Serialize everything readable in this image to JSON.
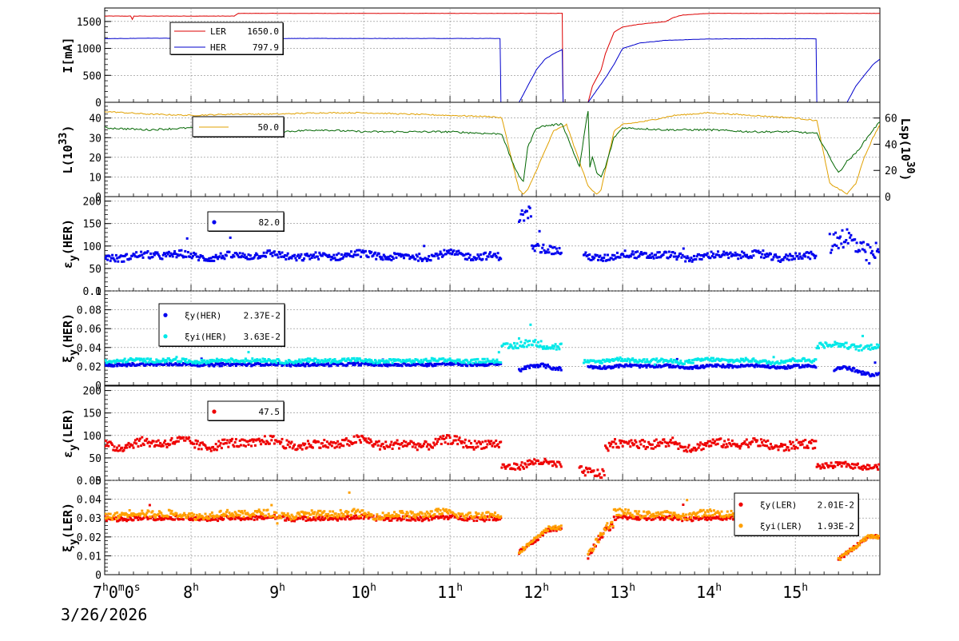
{
  "date_label": "3/26/2026",
  "x_axis": {
    "start_label": "7",
    "start_sup_h": "h",
    "start_mid": "0",
    "start_sup_m": "m",
    "start_mid2": "0",
    "start_sup_s": "s",
    "ticks": [
      {
        "hour": 8,
        "label": "8"
      },
      {
        "hour": 9,
        "label": "9"
      },
      {
        "hour": 10,
        "label": "10"
      },
      {
        "hour": 11,
        "label": "11"
      },
      {
        "hour": 12,
        "label": "12"
      },
      {
        "hour": 13,
        "label": "13"
      },
      {
        "hour": 14,
        "label": "14"
      },
      {
        "hour": 15,
        "label": "15"
      }
    ],
    "tick_suffix": "h",
    "range": [
      7.0,
      15.98
    ]
  },
  "chart_data": [
    {
      "type": "line",
      "ylabel": "I[mA]",
      "ylim": [
        0,
        1750
      ],
      "yticks": [
        "0",
        "500",
        "1000",
        "1500"
      ],
      "ytick_values": [
        0,
        500,
        1000,
        1500
      ],
      "grid": true,
      "legend": [
        {
          "name": "LER",
          "value": "1650.0",
          "color": "#dd0000"
        },
        {
          "name": "HER",
          "value": "797.9",
          "color": "#0000cc"
        }
      ],
      "series": [
        {
          "name": "LER",
          "color": "#dd0000",
          "x": [
            7.0,
            7.3,
            7.32,
            7.34,
            7.5,
            8.5,
            8.55,
            10.0,
            11.6,
            12.3,
            12.31,
            12.32,
            12.6,
            12.65,
            12.75,
            12.8,
            12.85,
            12.9,
            13.0,
            13.2,
            13.5,
            13.6,
            13.7,
            14.0,
            14.5,
            15.0,
            15.5,
            15.98
          ],
          "y": [
            1600,
            1600,
            1540,
            1600,
            1600,
            1600,
            1650,
            1650,
            1650,
            1650,
            0,
            0,
            0,
            300,
            600,
            900,
            1100,
            1300,
            1400,
            1450,
            1500,
            1580,
            1620,
            1650,
            1650,
            1650,
            1650,
            1650
          ]
        },
        {
          "name": "HER",
          "color": "#0000cc",
          "x": [
            7.0,
            7.5,
            8.0,
            9.0,
            10.0,
            11.0,
            11.58,
            11.59,
            11.8,
            11.9,
            12.0,
            12.1,
            12.2,
            12.3,
            12.31,
            12.5,
            12.6,
            12.8,
            12.9,
            13.0,
            13.2,
            13.5,
            14.0,
            14.5,
            15.0,
            15.24,
            15.25,
            15.6,
            15.7,
            15.8,
            15.9,
            15.98
          ],
          "y": [
            1180,
            1190,
            1185,
            1185,
            1185,
            1185,
            1185,
            0,
            0,
            300,
            600,
            800,
            900,
            980,
            0,
            0,
            0,
            450,
            700,
            1000,
            1100,
            1150,
            1175,
            1180,
            1180,
            1180,
            0,
            0,
            300,
            500,
            700,
            800
          ]
        }
      ]
    },
    {
      "type": "line",
      "ylabel": "L(10",
      "ylabel_sup": "33",
      "ylabel_end": ")",
      "ylim": [
        0,
        48
      ],
      "yticks": [
        "0",
        "10",
        "20",
        "30",
        "40"
      ],
      "ytick_values": [
        0,
        10,
        20,
        30,
        40
      ],
      "y2label": "Lsp(10",
      "y2label_sup": "30",
      "y2label_end": ")",
      "y2lim": [
        0,
        72
      ],
      "y2ticks": [
        "0",
        "20",
        "40",
        "60"
      ],
      "y2tick_values": [
        0,
        20,
        40,
        60
      ],
      "grid": true,
      "legend_text": "50.0",
      "series": [
        {
          "name": "Lsp",
          "axis": "right",
          "color": "#e0a000",
          "x": [
            7.0,
            7.5,
            8.0,
            8.5,
            9.0,
            9.5,
            10.0,
            10.5,
            11.0,
            11.5,
            11.6,
            11.8,
            11.85,
            11.9,
            12.0,
            12.2,
            12.35,
            12.6,
            12.7,
            12.75,
            12.8,
            12.9,
            13.0,
            13.3,
            13.6,
            14.0,
            14.5,
            15.0,
            15.25,
            15.4,
            15.6,
            15.7,
            15.8,
            15.9,
            15.98
          ],
          "y": [
            65,
            63,
            62,
            63,
            63,
            64,
            64,
            63,
            62,
            61,
            60,
            5,
            2,
            5,
            20,
            50,
            55,
            8,
            2,
            5,
            20,
            50,
            55,
            58,
            62,
            64,
            62,
            60,
            58,
            10,
            2,
            10,
            30,
            45,
            55
          ]
        },
        {
          "name": "L",
          "axis": "left",
          "color": "#006600",
          "x": [
            7.0,
            7.5,
            8.0,
            8.5,
            9.0,
            9.5,
            10.0,
            10.5,
            11.0,
            11.5,
            11.6,
            11.7,
            11.8,
            11.85,
            11.9,
            12.0,
            12.1,
            12.3,
            12.5,
            12.55,
            12.6,
            12.62,
            12.65,
            12.7,
            12.75,
            12.8,
            12.9,
            13.0,
            13.5,
            14.0,
            14.5,
            15.0,
            15.25,
            15.4,
            15.5,
            15.6,
            15.7,
            15.8,
            15.9,
            15.98
          ],
          "y": [
            35,
            34,
            35,
            33,
            33,
            34,
            33,
            33,
            33,
            32,
            32,
            20,
            10,
            8,
            25,
            35,
            36,
            37,
            15,
            30,
            44,
            15,
            20,
            12,
            10,
            15,
            30,
            35,
            34,
            34,
            33,
            33,
            32,
            20,
            12,
            18,
            22,
            28,
            34,
            38
          ]
        }
      ]
    },
    {
      "type": "scatter",
      "ylabel": "ε",
      "ylabel_sub": "y",
      "ylabel_end": "(HER)",
      "ylim": [
        0,
        210
      ],
      "yticks": [
        "0",
        "50",
        "100",
        "150",
        "200"
      ],
      "ytick_values": [
        0,
        50,
        100,
        150,
        200
      ],
      "grid": true,
      "legend": [
        {
          "name": "",
          "value": "82.0",
          "color": "#0000ee"
        }
      ],
      "series": [
        {
          "color": "#0000ee",
          "segments": [
            {
              "x0": 7.0,
              "x1": 11.6,
              "base": 78,
              "amp": 10,
              "spread": 8
            },
            {
              "x0": 11.8,
              "x1": 11.95,
              "base": 170,
              "amp": 20,
              "spread": 15
            },
            {
              "x0": 11.95,
              "x1": 12.3,
              "base": 90,
              "amp": 10,
              "spread": 10
            },
            {
              "x0": 12.55,
              "x1": 15.25,
              "base": 78,
              "amp": 10,
              "spread": 8
            },
            {
              "x0": 15.4,
              "x1": 15.98,
              "base": 100,
              "amp": 40,
              "spread": 25
            }
          ]
        }
      ]
    },
    {
      "type": "scatter",
      "ylabel": "ξ",
      "ylabel_sub": "y",
      "ylabel_end": "(HER)",
      "ylim": [
        0,
        0.1
      ],
      "yticks": [
        "0",
        "0.02",
        "0.04",
        "0.06",
        "0.08",
        "0.1"
      ],
      "ytick_values": [
        0,
        0.02,
        0.04,
        0.06,
        0.08,
        0.1
      ],
      "grid": true,
      "legend": [
        {
          "name": "ξy(HER)",
          "value": "2.37E-2",
          "color": "#0000ee"
        },
        {
          "name": "ξyi(HER)",
          "value": "3.63E-2",
          "color": "#00e8e8"
        }
      ],
      "series": [
        {
          "name": "ξy(HER)",
          "color": "#0000ee",
          "segments": [
            {
              "x0": 7.0,
              "x1": 11.6,
              "base": 0.022,
              "amp": 0.001,
              "spread": 0.0015
            },
            {
              "x0": 11.8,
              "x1": 12.3,
              "base": 0.018,
              "amp": 0.006,
              "spread": 0.002
            },
            {
              "x0": 12.6,
              "x1": 15.25,
              "base": 0.02,
              "amp": 0.002,
              "spread": 0.0015
            },
            {
              "x0": 15.45,
              "x1": 15.98,
              "base": 0.015,
              "amp": 0.007,
              "spread": 0.002
            }
          ]
        },
        {
          "name": "ξyi(HER)",
          "color": "#00e8e8",
          "segments": [
            {
              "x0": 7.0,
              "x1": 11.6,
              "base": 0.026,
              "amp": 0.002,
              "spread": 0.002
            },
            {
              "x0": 11.6,
              "x1": 12.3,
              "base": 0.042,
              "amp": 0.005,
              "spread": 0.004
            },
            {
              "x0": 12.55,
              "x1": 15.25,
              "base": 0.026,
              "amp": 0.003,
              "spread": 0.002
            },
            {
              "x0": 15.25,
              "x1": 15.98,
              "base": 0.042,
              "amp": 0.004,
              "spread": 0.003
            }
          ]
        }
      ]
    },
    {
      "type": "scatter",
      "ylabel": "ε",
      "ylabel_sub": "y",
      "ylabel_end": "(LER)",
      "ylim": [
        0,
        210
      ],
      "yticks": [
        "0",
        "50",
        "100",
        "150",
        "200"
      ],
      "ytick_values": [
        0,
        50,
        100,
        150,
        200
      ],
      "grid": true,
      "legend": [
        {
          "name": "",
          "value": "47.5",
          "color": "#ee0000"
        }
      ],
      "series": [
        {
          "color": "#ee0000",
          "segments": [
            {
              "x0": 7.0,
              "x1": 11.6,
              "base": 82,
              "amp": 15,
              "spread": 10
            },
            {
              "x0": 11.6,
              "x1": 12.3,
              "base": 35,
              "amp": 12,
              "spread": 8
            },
            {
              "x0": 12.5,
              "x1": 12.8,
              "base": 20,
              "amp": 10,
              "spread": 10
            },
            {
              "x0": 12.8,
              "x1": 15.25,
              "base": 80,
              "amp": 12,
              "spread": 10
            },
            {
              "x0": 15.25,
              "x1": 15.98,
              "base": 32,
              "amp": 6,
              "spread": 6
            }
          ]
        }
      ]
    },
    {
      "type": "scatter",
      "ylabel": "ξ",
      "ylabel_sub": "y",
      "ylabel_end": "(LER)",
      "ylim": [
        0,
        0.05
      ],
      "yticks": [
        "0",
        "0.01",
        "0.02",
        "0.03",
        "0.04",
        "0.05"
      ],
      "ytick_values": [
        0,
        0.01,
        0.02,
        0.03,
        0.04,
        0.05
      ],
      "grid": true,
      "legend": [
        {
          "name": "ξy(LER)",
          "value": "2.01E-2",
          "color": "#ee0000"
        },
        {
          "name": "ξyi(LER)",
          "value": "1.93E-2",
          "color": "#ffa000"
        }
      ],
      "series": [
        {
          "name": "ξy(LER)",
          "color": "#ee0000",
          "segments": [
            {
              "x0": 7.0,
              "x1": 11.6,
              "base": 0.03,
              "amp": 0.001,
              "spread": 0.0012
            },
            {
              "x0": 11.8,
              "x1": 12.3,
              "base": 0.012,
              "amp": 0.012,
              "spread": 0.001,
              "ramp": true
            },
            {
              "x0": 12.6,
              "x1": 12.9,
              "base": 0.01,
              "amp": 0.015,
              "spread": 0.002,
              "ramp": true
            },
            {
              "x0": 12.9,
              "x1": 15.25,
              "base": 0.03,
              "amp": 0.001,
              "spread": 0.0012
            },
            {
              "x0": 15.5,
              "x1": 15.98,
              "base": 0.008,
              "amp": 0.012,
              "spread": 0.001,
              "ramp": true
            }
          ]
        },
        {
          "name": "ξyi(LER)",
          "color": "#ffa000",
          "segments": [
            {
              "x0": 7.0,
              "x1": 11.6,
              "base": 0.032,
              "amp": 0.002,
              "spread": 0.0018
            },
            {
              "x0": 11.8,
              "x1": 12.3,
              "base": 0.012,
              "amp": 0.013,
              "spread": 0.001,
              "ramp": true
            },
            {
              "x0": 12.6,
              "x1": 12.9,
              "base": 0.01,
              "amp": 0.016,
              "spread": 0.002,
              "ramp": true
            },
            {
              "x0": 12.9,
              "x1": 15.25,
              "base": 0.032,
              "amp": 0.002,
              "spread": 0.0018
            },
            {
              "x0": 15.5,
              "x1": 15.98,
              "base": 0.008,
              "amp": 0.012,
              "spread": 0.001,
              "ramp": true
            }
          ]
        }
      ]
    }
  ]
}
